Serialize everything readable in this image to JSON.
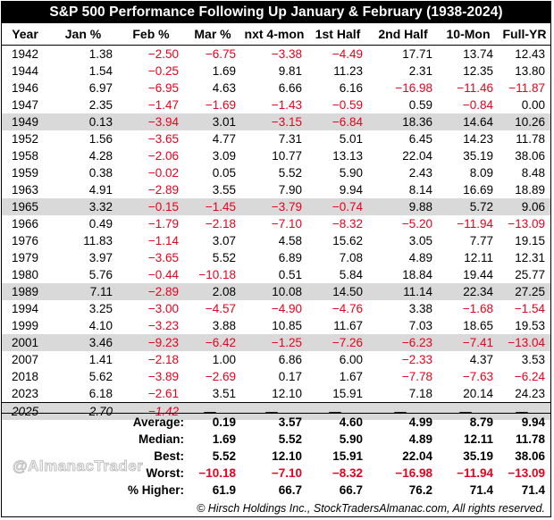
{
  "chart_data": {
    "type": "table",
    "title": "S&P 500 Performance Following Up January & February (1938-2024)",
    "columns": [
      "Year",
      "Jan %",
      "Feb %",
      "Mar %",
      "nxt 4-mon",
      "1st Half",
      "2nd Half",
      "10-Mon",
      "Full-YR"
    ],
    "rows": [
      {
        "values": [
          "1942",
          "1.38",
          "−2.50",
          "−6.75",
          "−3.38",
          "−4.49",
          "17.71",
          "13.74",
          "12.43"
        ],
        "shade": false
      },
      {
        "values": [
          "1944",
          "1.54",
          "−0.25",
          "1.69",
          "9.81",
          "11.23",
          "2.31",
          "12.35",
          "13.80"
        ],
        "shade": false
      },
      {
        "values": [
          "1946",
          "6.97",
          "−6.95",
          "4.63",
          "6.66",
          "6.16",
          "−16.98",
          "−11.46",
          "−11.87"
        ],
        "shade": false
      },
      {
        "values": [
          "1947",
          "2.35",
          "−1.47",
          "−1.69",
          "−1.43",
          "−0.59",
          "0.59",
          "−0.84",
          "0.00"
        ],
        "shade": false
      },
      {
        "values": [
          "1949",
          "0.13",
          "−3.94",
          "3.01",
          "−3.15",
          "−6.84",
          "18.36",
          "14.64",
          "10.26"
        ],
        "shade": true
      },
      {
        "values": [
          "1952",
          "1.56",
          "−3.65",
          "4.77",
          "7.31",
          "5.01",
          "6.45",
          "14.23",
          "11.78"
        ],
        "shade": false
      },
      {
        "values": [
          "1958",
          "4.28",
          "−2.06",
          "3.09",
          "10.77",
          "13.13",
          "22.04",
          "35.19",
          "38.06"
        ],
        "shade": false
      },
      {
        "values": [
          "1959",
          "0.38",
          "−0.02",
          "0.05",
          "5.52",
          "5.90",
          "2.43",
          "8.09",
          "8.48"
        ],
        "shade": false
      },
      {
        "values": [
          "1963",
          "4.91",
          "−2.89",
          "3.55",
          "7.90",
          "9.94",
          "8.14",
          "16.69",
          "18.89"
        ],
        "shade": false
      },
      {
        "values": [
          "1965",
          "3.32",
          "−0.15",
          "−1.45",
          "−3.79",
          "−0.74",
          "9.88",
          "5.72",
          "9.06"
        ],
        "shade": true
      },
      {
        "values": [
          "1966",
          "0.49",
          "−1.79",
          "−2.18",
          "−7.10",
          "−8.32",
          "−5.20",
          "−11.94",
          "−13.09"
        ],
        "shade": false
      },
      {
        "values": [
          "1976",
          "11.83",
          "−1.14",
          "3.07",
          "4.58",
          "15.62",
          "3.05",
          "7.77",
          "19.15"
        ],
        "shade": false
      },
      {
        "values": [
          "1979",
          "3.97",
          "−3.65",
          "5.52",
          "6.89",
          "7.08",
          "4.89",
          "12.11",
          "12.31"
        ],
        "shade": false
      },
      {
        "values": [
          "1980",
          "5.76",
          "−0.44",
          "−10.18",
          "0.51",
          "5.84",
          "18.84",
          "19.44",
          "25.77"
        ],
        "shade": false
      },
      {
        "values": [
          "1989",
          "7.11",
          "−2.89",
          "2.08",
          "10.08",
          "14.50",
          "11.14",
          "22.34",
          "27.25"
        ],
        "shade": true
      },
      {
        "values": [
          "1994",
          "3.25",
          "−3.00",
          "−4.57",
          "−4.90",
          "−4.76",
          "3.38",
          "−1.68",
          "−1.54"
        ],
        "shade": false
      },
      {
        "values": [
          "1999",
          "4.10",
          "−3.23",
          "3.88",
          "10.85",
          "11.67",
          "7.03",
          "18.65",
          "19.53"
        ],
        "shade": false
      },
      {
        "values": [
          "2001",
          "3.46",
          "−9.23",
          "−6.42",
          "−1.25",
          "−7.26",
          "−6.23",
          "−7.41",
          "−13.04"
        ],
        "shade": true
      },
      {
        "values": [
          "2007",
          "1.41",
          "−2.18",
          "1.00",
          "6.86",
          "6.00",
          "−2.33",
          "4.37",
          "3.53"
        ],
        "shade": false
      },
      {
        "values": [
          "2018",
          "5.62",
          "−3.89",
          "−2.69",
          "0.17",
          "1.67",
          "−7.78",
          "−7.63",
          "−6.24"
        ],
        "shade": false
      },
      {
        "values": [
          "2023",
          "6.18",
          "−2.61",
          "3.51",
          "12.10",
          "15.91",
          "7.18",
          "20.14",
          "24.23"
        ],
        "shade": false
      }
    ],
    "current_row": {
      "values": [
        "2025",
        "2.70",
        "−1.42",
        "—",
        "—",
        "—",
        "—",
        "—",
        "—"
      ]
    },
    "summary": [
      {
        "label": "Average:",
        "values": [
          "0.19",
          "3.57",
          "4.60",
          "4.99",
          "8.79",
          "9.94"
        ]
      },
      {
        "label": "Median:",
        "values": [
          "1.69",
          "5.52",
          "5.90",
          "4.89",
          "12.11",
          "11.78"
        ]
      },
      {
        "label": "Best:",
        "values": [
          "5.52",
          "12.10",
          "15.91",
          "22.04",
          "35.19",
          "38.06"
        ]
      },
      {
        "label": "Worst:",
        "values": [
          "−10.18",
          "−7.10",
          "−8.32",
          "−16.98",
          "−11.94",
          "−13.09"
        ]
      },
      {
        "label": "% Higher:",
        "values": [
          "61.9",
          "66.7",
          "66.7",
          "76.2",
          "71.4",
          "71.4"
        ]
      }
    ],
    "negative_color": "#e8001c",
    "shade_color": "#d9d9d9"
  },
  "watermark": "@AlmanacTrader",
  "footer": "© Hirsch Holdings Inc., StockTradersAlmanac.com, All rights reserved."
}
